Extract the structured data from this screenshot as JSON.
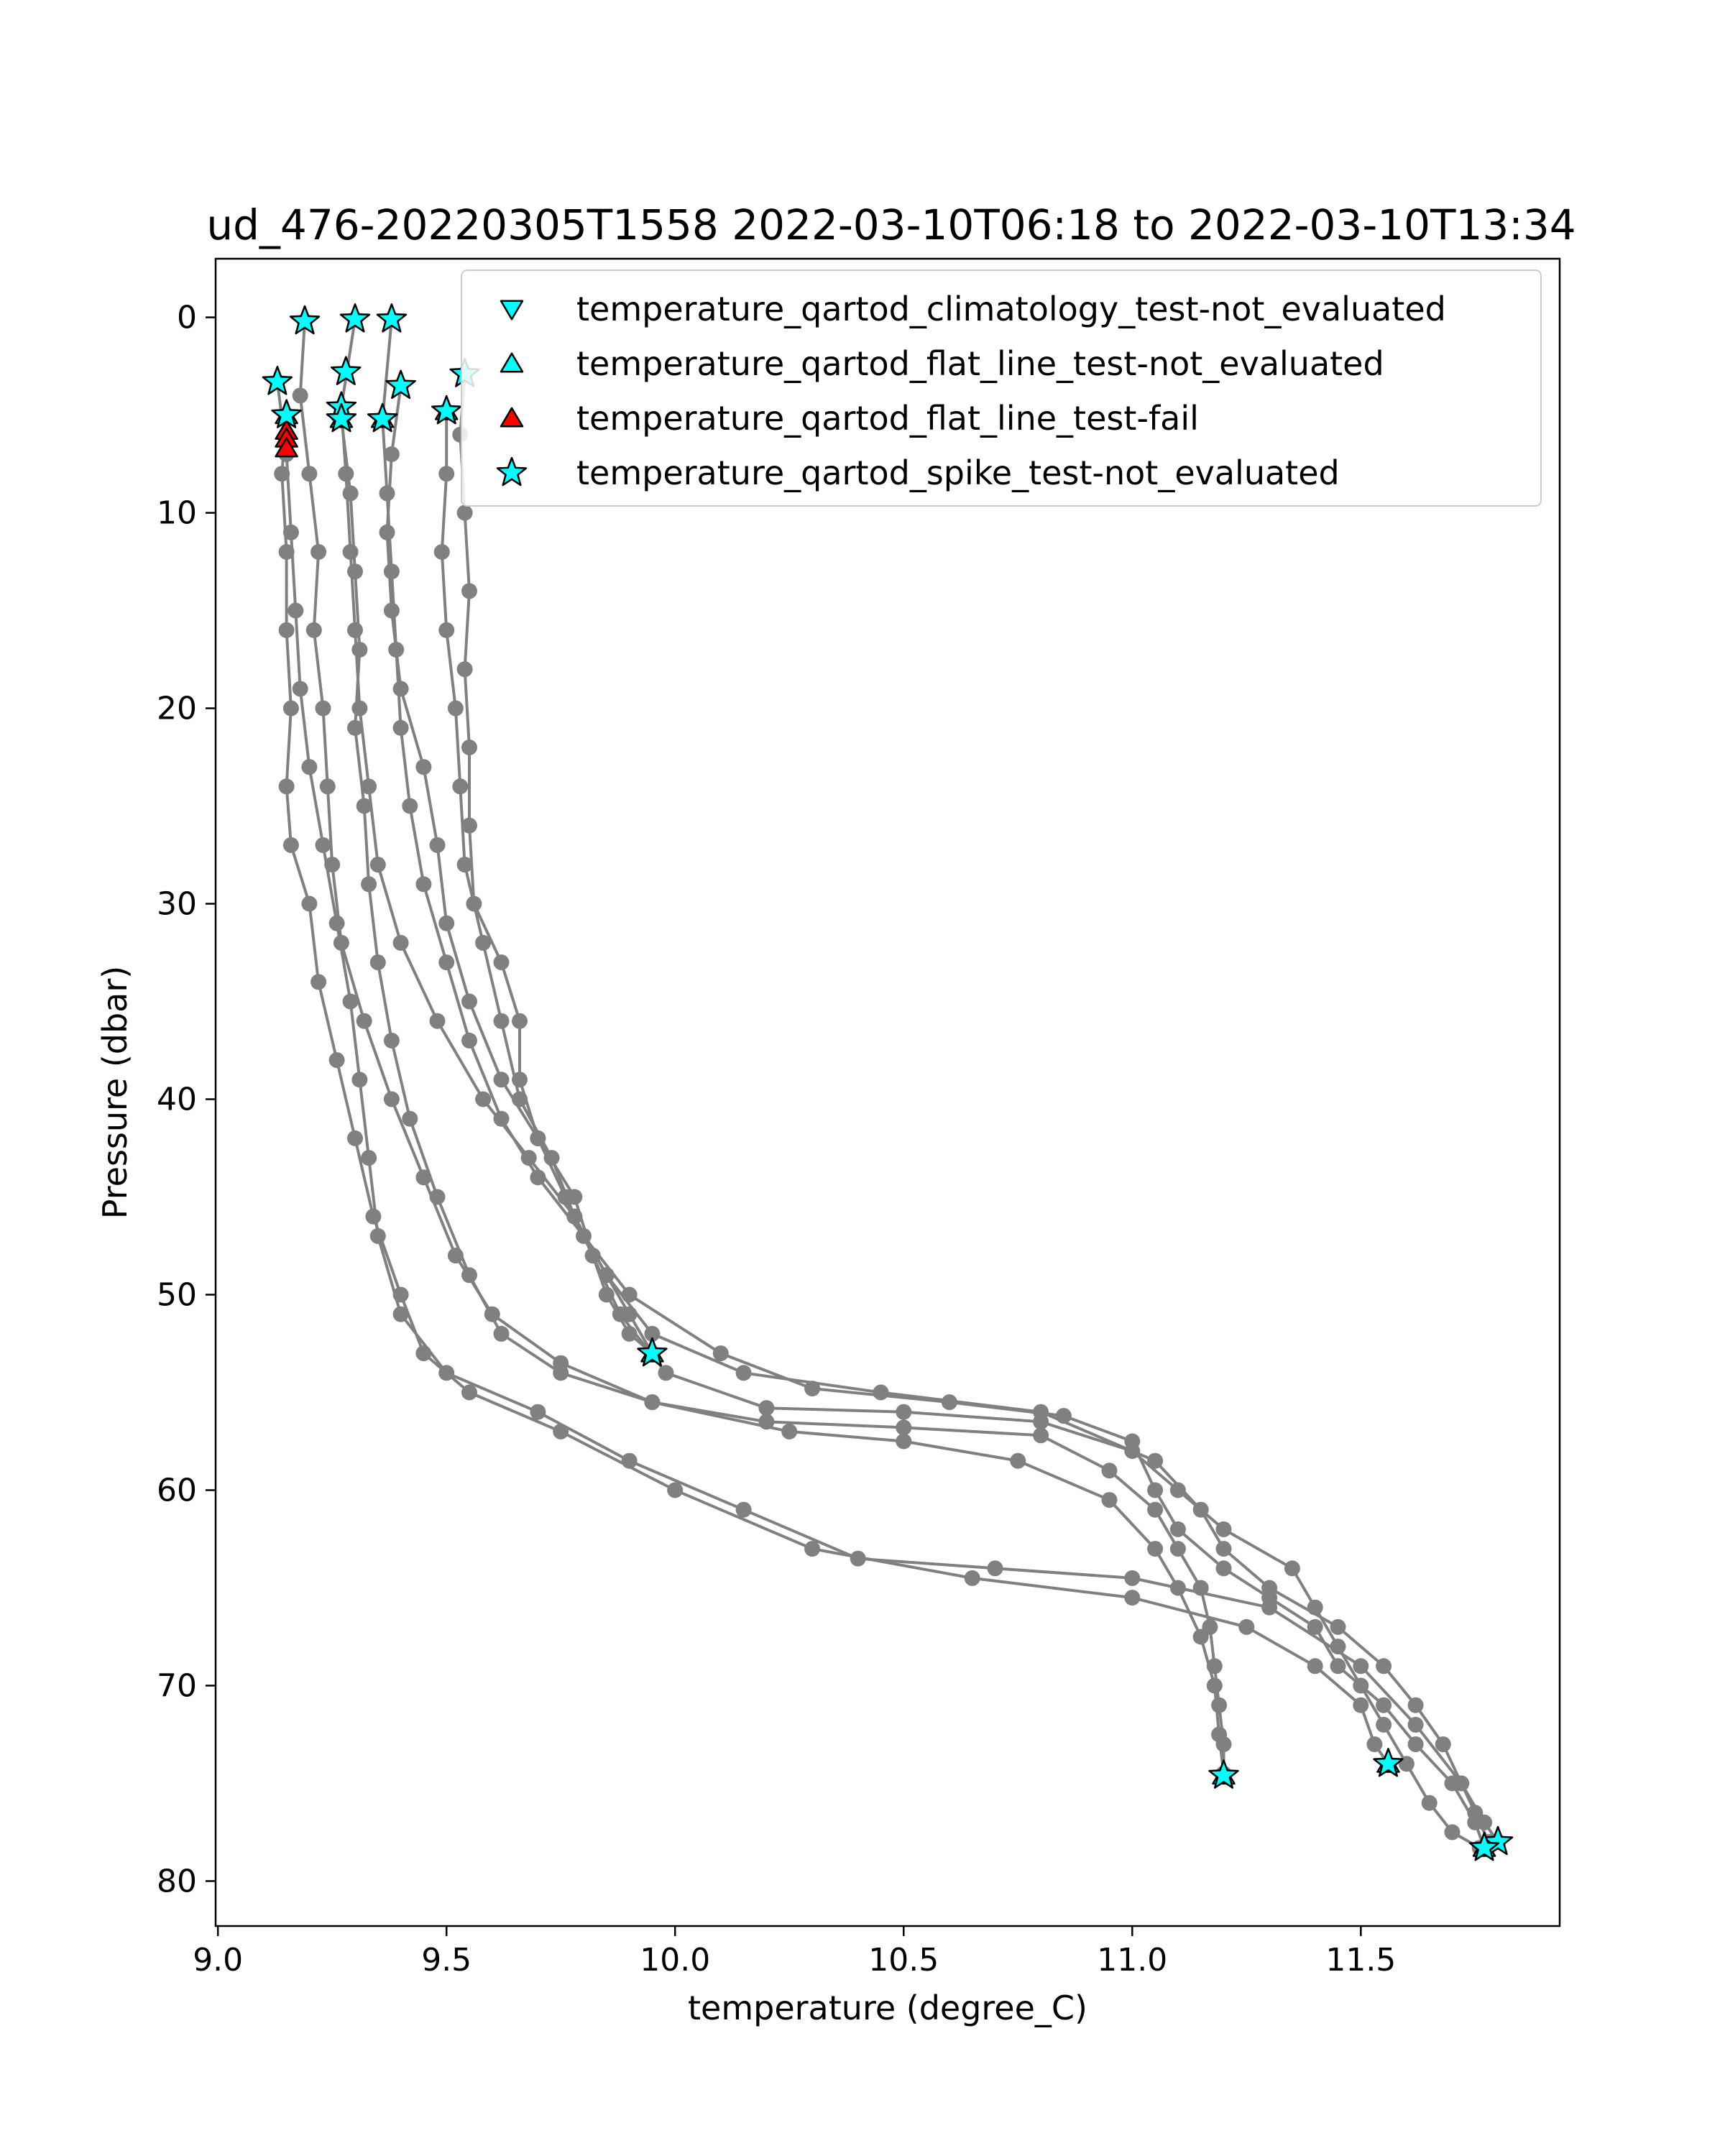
{
  "chart_data": {
    "type": "scatter",
    "title": "ud_476-20220305T1558 2022-03-10T06:18 to 2022-03-10T13:34",
    "xlabel": "temperature (degree_C)",
    "ylabel": "Pressure (dbar)",
    "xlim": [
      8.995,
      11.935
    ],
    "ylim": [
      82.3,
      -3.0
    ],
    "y_inverted": true,
    "grid": false,
    "x_ticks": [
      9.0,
      9.5,
      10.0,
      10.5,
      11.0,
      11.5
    ],
    "x_tick_labels": [
      "9.0",
      "9.5",
      "10.0",
      "10.5",
      "11.0",
      "11.5"
    ],
    "y_ticks": [
      0,
      10,
      20,
      30,
      40,
      50,
      60,
      70,
      80
    ],
    "y_tick_labels": [
      "0",
      "10",
      "20",
      "30",
      "40",
      "50",
      "60",
      "70",
      "80"
    ],
    "legend_position": "top-right",
    "profile_color": "#808080",
    "profiles": [
      {
        "points": [
          [
            9.15,
            5.0
          ],
          [
            9.14,
            8
          ],
          [
            9.15,
            12
          ],
          [
            9.15,
            16
          ],
          [
            9.16,
            20
          ],
          [
            9.15,
            24
          ],
          [
            9.16,
            27
          ],
          [
            9.2,
            30
          ],
          [
            9.22,
            34
          ],
          [
            9.26,
            38
          ],
          [
            9.3,
            42
          ],
          [
            9.34,
            46
          ],
          [
            9.4,
            50
          ],
          [
            9.45,
            53
          ],
          [
            9.55,
            55
          ],
          [
            9.75,
            57
          ],
          [
            10.0,
            60
          ],
          [
            10.3,
            63
          ],
          [
            10.65,
            64.5
          ],
          [
            11.0,
            65.5
          ],
          [
            11.25,
            67
          ],
          [
            11.4,
            69
          ],
          [
            11.5,
            71
          ],
          [
            11.53,
            73
          ],
          [
            11.56,
            74
          ]
        ]
      },
      {
        "points": [
          [
            9.13,
            3.3
          ],
          [
            9.15,
            7
          ],
          [
            9.16,
            11
          ],
          [
            9.17,
            15
          ],
          [
            9.18,
            19
          ],
          [
            9.2,
            23
          ],
          [
            9.23,
            27
          ],
          [
            9.26,
            31
          ],
          [
            9.29,
            35
          ],
          [
            9.31,
            39
          ],
          [
            9.33,
            43
          ],
          [
            9.35,
            47
          ],
          [
            9.4,
            51
          ],
          [
            9.5,
            54
          ],
          [
            9.7,
            56
          ],
          [
            9.9,
            58.5
          ],
          [
            10.15,
            61
          ],
          [
            10.4,
            63.5
          ],
          [
            10.7,
            64
          ],
          [
            11.0,
            64.5
          ],
          [
            11.3,
            66
          ],
          [
            11.5,
            69
          ],
          [
            11.62,
            72
          ],
          [
            11.72,
            75
          ],
          [
            11.77,
            77
          ],
          [
            11.8,
            78
          ]
        ]
      },
      {
        "points": [
          [
            9.19,
            0.2
          ],
          [
            9.18,
            4
          ],
          [
            9.2,
            8
          ],
          [
            9.22,
            12
          ],
          [
            9.21,
            16
          ],
          [
            9.23,
            20
          ],
          [
            9.24,
            24
          ],
          [
            9.25,
            28
          ],
          [
            9.27,
            32
          ],
          [
            9.32,
            36
          ],
          [
            9.38,
            40
          ],
          [
            9.45,
            44
          ],
          [
            9.52,
            48
          ],
          [
            9.6,
            51
          ],
          [
            9.75,
            53.5
          ],
          [
            9.95,
            55.5
          ],
          [
            10.25,
            57
          ],
          [
            10.5,
            57.5
          ],
          [
            10.75,
            58.5
          ],
          [
            10.95,
            60.5
          ],
          [
            11.05,
            63
          ],
          [
            11.1,
            65
          ],
          [
            11.15,
            67.5
          ],
          [
            11.18,
            70
          ],
          [
            11.19,
            72.5
          ],
          [
            11.2,
            74.5
          ]
        ]
      },
      {
        "points": [
          [
            9.27,
            5.2
          ],
          [
            9.29,
            9
          ],
          [
            9.3,
            13
          ],
          [
            9.31,
            17
          ],
          [
            9.3,
            21
          ],
          [
            9.32,
            25
          ],
          [
            9.33,
            29
          ],
          [
            9.35,
            33
          ],
          [
            9.38,
            37
          ],
          [
            9.42,
            41
          ],
          [
            9.48,
            45
          ],
          [
            9.55,
            49
          ],
          [
            9.62,
            52
          ],
          [
            9.75,
            54
          ],
          [
            9.95,
            55.5
          ],
          [
            10.2,
            56.5
          ],
          [
            10.5,
            56.8
          ],
          [
            10.8,
            57.2
          ],
          [
            10.95,
            59
          ],
          [
            11.05,
            61
          ],
          [
            11.1,
            63
          ],
          [
            11.15,
            65
          ],
          [
            11.17,
            67
          ],
          [
            11.18,
            69
          ],
          [
            11.19,
            71
          ],
          [
            11.2,
            73
          ],
          [
            11.2,
            74.6
          ]
        ]
      },
      {
        "points": [
          [
            9.3,
            0.1
          ],
          [
            9.27,
            4.6
          ],
          [
            9.28,
            8
          ],
          [
            9.29,
            12
          ],
          [
            9.3,
            16
          ],
          [
            9.31,
            20
          ],
          [
            9.33,
            24
          ],
          [
            9.35,
            28
          ],
          [
            9.4,
            32
          ],
          [
            9.48,
            36
          ],
          [
            9.58,
            40
          ],
          [
            9.68,
            43
          ],
          [
            9.78,
            46
          ],
          [
            9.85,
            49
          ],
          [
            9.9,
            51
          ],
          [
            9.95,
            53
          ]
        ]
      },
      {
        "points": [
          [
            9.38,
            0.1
          ],
          [
            9.36,
            5.2
          ],
          [
            9.37,
            9
          ],
          [
            9.38,
            13
          ],
          [
            9.39,
            17
          ],
          [
            9.4,
            21
          ],
          [
            9.42,
            25
          ],
          [
            9.45,
            29
          ],
          [
            9.5,
            33
          ],
          [
            9.55,
            37
          ],
          [
            9.62,
            41
          ],
          [
            9.7,
            44
          ],
          [
            9.8,
            47
          ],
          [
            9.9,
            50
          ],
          [
            10.1,
            53
          ],
          [
            10.3,
            54.8
          ],
          [
            10.6,
            55.5
          ],
          [
            10.85,
            56.2
          ],
          [
            11.0,
            57.5
          ],
          [
            11.05,
            60
          ],
          [
            11.1,
            62
          ],
          [
            11.2,
            64
          ],
          [
            11.3,
            65.5
          ],
          [
            11.4,
            67
          ],
          [
            11.45,
            69
          ],
          [
            11.55,
            71
          ],
          [
            11.62,
            73
          ],
          [
            11.7,
            75
          ],
          [
            11.75,
            77
          ],
          [
            11.77,
            78.3
          ]
        ]
      },
      {
        "points": [
          [
            9.4,
            3.5
          ],
          [
            9.38,
            7
          ],
          [
            9.37,
            11
          ],
          [
            9.38,
            15
          ],
          [
            9.4,
            19
          ],
          [
            9.45,
            23
          ],
          [
            9.48,
            27
          ],
          [
            9.5,
            31
          ],
          [
            9.55,
            35
          ],
          [
            9.62,
            39
          ],
          [
            9.7,
            42
          ],
          [
            9.78,
            45
          ],
          [
            9.82,
            48
          ],
          [
            9.88,
            51
          ],
          [
            9.98,
            54
          ],
          [
            10.2,
            55.8
          ],
          [
            10.5,
            56
          ],
          [
            10.8,
            56.5
          ],
          [
            11.0,
            58
          ],
          [
            11.1,
            60
          ],
          [
            11.2,
            62
          ],
          [
            11.35,
            64
          ],
          [
            11.4,
            66
          ],
          [
            11.45,
            68
          ],
          [
            11.5,
            70
          ],
          [
            11.55,
            72
          ],
          [
            11.6,
            74
          ],
          [
            11.65,
            76
          ],
          [
            11.7,
            77.5
          ],
          [
            11.76,
            78.3
          ]
        ]
      },
      {
        "points": [
          [
            9.5,
            4.8
          ],
          [
            9.5,
            8
          ],
          [
            9.49,
            12
          ],
          [
            9.5,
            16
          ],
          [
            9.52,
            20
          ],
          [
            9.53,
            24
          ],
          [
            9.54,
            28
          ],
          [
            9.58,
            32
          ],
          [
            9.62,
            36
          ],
          [
            9.66,
            40
          ],
          [
            9.73,
            43
          ],
          [
            9.78,
            46
          ],
          [
            9.85,
            49
          ],
          [
            9.95,
            52
          ],
          [
            10.15,
            54
          ],
          [
            10.45,
            55
          ],
          [
            10.8,
            56
          ],
          [
            11.05,
            58.5
          ],
          [
            11.15,
            61
          ],
          [
            11.2,
            63
          ],
          [
            11.3,
            65
          ],
          [
            11.45,
            67
          ],
          [
            11.55,
            69
          ],
          [
            11.62,
            71
          ],
          [
            11.68,
            73
          ],
          [
            11.72,
            75
          ],
          [
            11.75,
            76.5
          ],
          [
            11.78,
            78
          ]
        ]
      },
      {
        "points": [
          [
            9.54,
            2.9
          ],
          [
            9.53,
            6
          ],
          [
            9.54,
            10
          ],
          [
            9.55,
            14
          ],
          [
            9.54,
            18
          ],
          [
            9.55,
            22
          ],
          [
            9.55,
            26
          ],
          [
            9.56,
            30
          ],
          [
            9.62,
            33
          ],
          [
            9.66,
            36
          ],
          [
            9.66,
            39
          ],
          [
            9.7,
            42
          ],
          [
            9.76,
            45
          ],
          [
            9.82,
            48
          ],
          [
            9.85,
            50
          ],
          [
            9.9,
            52
          ],
          [
            9.95,
            53
          ]
        ]
      }
    ],
    "markers": [
      {
        "series": "temperature_qartod_spike_test-not_evaluated",
        "points": [
          [
            9.19,
            0.2
          ],
          [
            9.3,
            0.1
          ],
          [
            9.38,
            0.1
          ],
          [
            9.13,
            3.3
          ],
          [
            9.15,
            5.0
          ],
          [
            9.28,
            2.8
          ],
          [
            9.27,
            4.6
          ],
          [
            9.27,
            5.2
          ],
          [
            9.36,
            5.2
          ],
          [
            9.4,
            3.5
          ],
          [
            9.5,
            4.8
          ],
          [
            9.54,
            2.9
          ],
          [
            9.95,
            53.0
          ],
          [
            11.2,
            74.6
          ],
          [
            11.56,
            74.0
          ],
          [
            11.8,
            78.0
          ],
          [
            11.77,
            78.3
          ]
        ]
      },
      {
        "series": "temperature_qartod_flat_line_test-not_evaluated",
        "points": [
          [
            9.27,
            5.2
          ],
          [
            9.36,
            5.2
          ],
          [
            9.5,
            4.8
          ],
          [
            9.15,
            5.0
          ],
          [
            9.95,
            53.0
          ],
          [
            11.2,
            74.6
          ],
          [
            11.56,
            74.0
          ],
          [
            11.77,
            78.3
          ]
        ]
      },
      {
        "series": "temperature_qartod_flat_line_test-fail",
        "points": [
          [
            9.15,
            5.8
          ],
          [
            9.15,
            6.2
          ],
          [
            9.15,
            6.7
          ]
        ]
      }
    ],
    "legend": [
      {
        "label": "temperature_qartod_climatology_test-not_evaluated",
        "marker": "triangle-down",
        "color": "#00ffff"
      },
      {
        "label": "temperature_qartod_flat_line_test-not_evaluated",
        "marker": "triangle-up",
        "color": "#00ffff"
      },
      {
        "label": "temperature_qartod_flat_line_test-fail",
        "marker": "triangle-up",
        "color": "#ff0000"
      },
      {
        "label": "temperature_qartod_spike_test-not_evaluated",
        "marker": "star",
        "color": "#00ffff"
      }
    ]
  }
}
